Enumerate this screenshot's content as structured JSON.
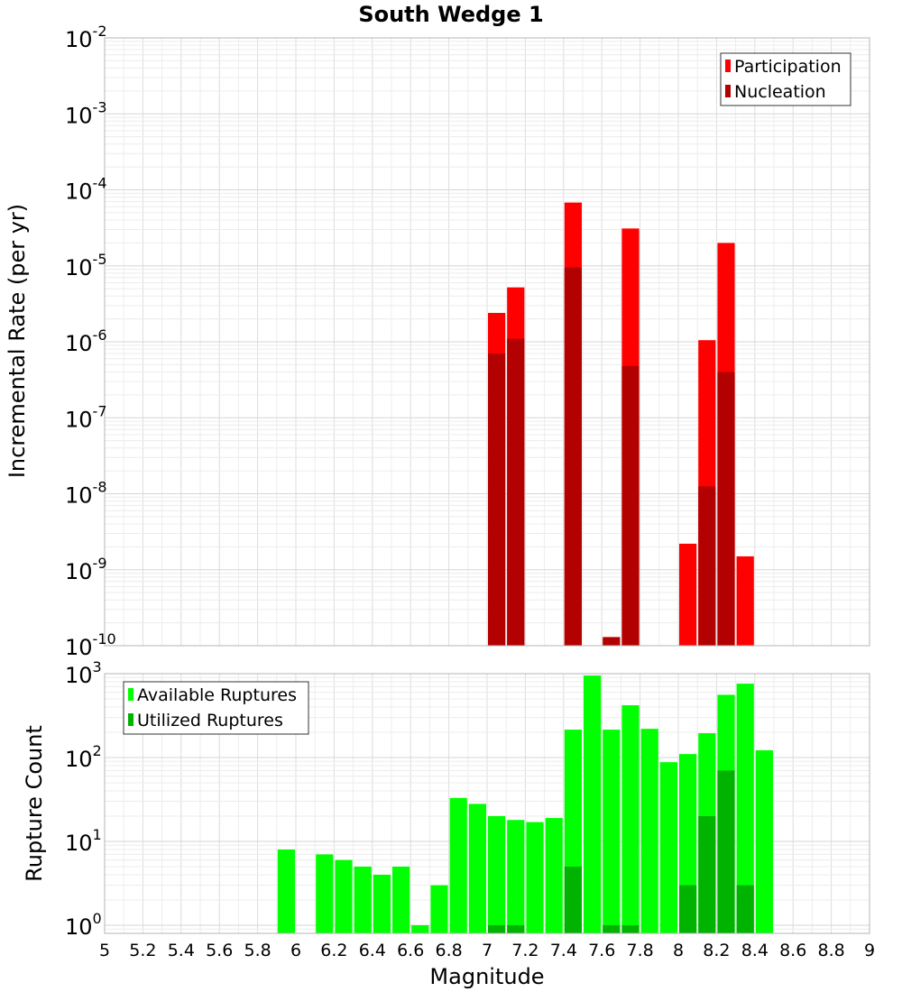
{
  "chart_data": [
    {
      "type": "bar",
      "title": "South Wedge 1",
      "xlabel": "",
      "ylabel": "Incremental Rate (per yr)",
      "xlim": [
        5,
        9
      ],
      "ylim": [
        1e-10,
        0.01
      ],
      "y_scale": "log",
      "grid": true,
      "legend_position": "top-right",
      "y_ticks": [
        {
          "base": "10",
          "exp": "-10"
        },
        {
          "base": "10",
          "exp": "-9"
        },
        {
          "base": "10",
          "exp": "-8"
        },
        {
          "base": "10",
          "exp": "-7"
        },
        {
          "base": "10",
          "exp": "-6"
        },
        {
          "base": "10",
          "exp": "-5"
        },
        {
          "base": "10",
          "exp": "-4"
        },
        {
          "base": "10",
          "exp": "-3"
        },
        {
          "base": "10",
          "exp": "-2"
        }
      ],
      "series": [
        {
          "name": "Participation",
          "color": "#ff0000",
          "points": [
            {
              "x": 7.05,
              "y": 2.4e-06
            },
            {
              "x": 7.15,
              "y": 5.2e-06
            },
            {
              "x": 7.45,
              "y": 6.8e-05
            },
            {
              "x": 7.75,
              "y": 3.1e-05
            },
            {
              "x": 8.05,
              "y": 2.2e-09
            },
            {
              "x": 8.15,
              "y": 1.05e-06
            },
            {
              "x": 8.25,
              "y": 2e-05
            },
            {
              "x": 8.35,
              "y": 1.5e-09
            }
          ]
        },
        {
          "name": "Nucleation",
          "color": "#b30000",
          "points": [
            {
              "x": 7.05,
              "y": 7e-07
            },
            {
              "x": 7.15,
              "y": 1.1e-06
            },
            {
              "x": 7.45,
              "y": 9.5e-06
            },
            {
              "x": 7.65,
              "y": 1.3e-10
            },
            {
              "x": 7.75,
              "y": 4.8e-07
            },
            {
              "x": 8.15,
              "y": 1.25e-08
            },
            {
              "x": 8.25,
              "y": 4e-07
            }
          ]
        }
      ]
    },
    {
      "type": "bar",
      "title": "",
      "xlabel": "Magnitude",
      "ylabel": "Rupture Count",
      "xlim": [
        5,
        9
      ],
      "ylim": [
        0.8,
        1000
      ],
      "y_scale": "log",
      "grid": true,
      "legend_position": "top-left",
      "x_ticks": [
        "5",
        "5.2",
        "5.4",
        "5.6",
        "5.8",
        "6",
        "6.2",
        "6.4",
        "6.6",
        "6.8",
        "7",
        "7.2",
        "7.4",
        "7.6",
        "7.8",
        "8",
        "8.2",
        "8.4",
        "8.6",
        "8.8",
        "9"
      ],
      "y_ticks": [
        {
          "base": "10",
          "exp": "0"
        },
        {
          "base": "10",
          "exp": "1"
        },
        {
          "base": "10",
          "exp": "2"
        },
        {
          "base": "10",
          "exp": "3"
        }
      ],
      "series": [
        {
          "name": "Available Ruptures",
          "color": "#00ff00",
          "points": [
            {
              "x": 5.95,
              "y": 8
            },
            {
              "x": 6.15,
              "y": 7
            },
            {
              "x": 6.25,
              "y": 6
            },
            {
              "x": 6.35,
              "y": 5
            },
            {
              "x": 6.45,
              "y": 4
            },
            {
              "x": 6.55,
              "y": 5
            },
            {
              "x": 6.65,
              "y": 1
            },
            {
              "x": 6.75,
              "y": 3
            },
            {
              "x": 6.85,
              "y": 33
            },
            {
              "x": 6.95,
              "y": 28
            },
            {
              "x": 7.05,
              "y": 20
            },
            {
              "x": 7.15,
              "y": 18
            },
            {
              "x": 7.25,
              "y": 17
            },
            {
              "x": 7.35,
              "y": 19
            },
            {
              "x": 7.45,
              "y": 215
            },
            {
              "x": 7.55,
              "y": 950
            },
            {
              "x": 7.65,
              "y": 215
            },
            {
              "x": 7.75,
              "y": 420
            },
            {
              "x": 7.85,
              "y": 220
            },
            {
              "x": 7.95,
              "y": 88
            },
            {
              "x": 8.05,
              "y": 110
            },
            {
              "x": 8.15,
              "y": 195
            },
            {
              "x": 8.25,
              "y": 560
            },
            {
              "x": 8.35,
              "y": 760
            },
            {
              "x": 8.45,
              "y": 122
            }
          ]
        },
        {
          "name": "Utilized Ruptures",
          "color": "#00b300",
          "points": [
            {
              "x": 7.05,
              "y": 1
            },
            {
              "x": 7.15,
              "y": 1
            },
            {
              "x": 7.45,
              "y": 5
            },
            {
              "x": 7.65,
              "y": 1
            },
            {
              "x": 7.75,
              "y": 1
            },
            {
              "x": 8.05,
              "y": 3
            },
            {
              "x": 8.15,
              "y": 20
            },
            {
              "x": 8.25,
              "y": 70
            },
            {
              "x": 8.35,
              "y": 3
            }
          ]
        }
      ]
    }
  ]
}
